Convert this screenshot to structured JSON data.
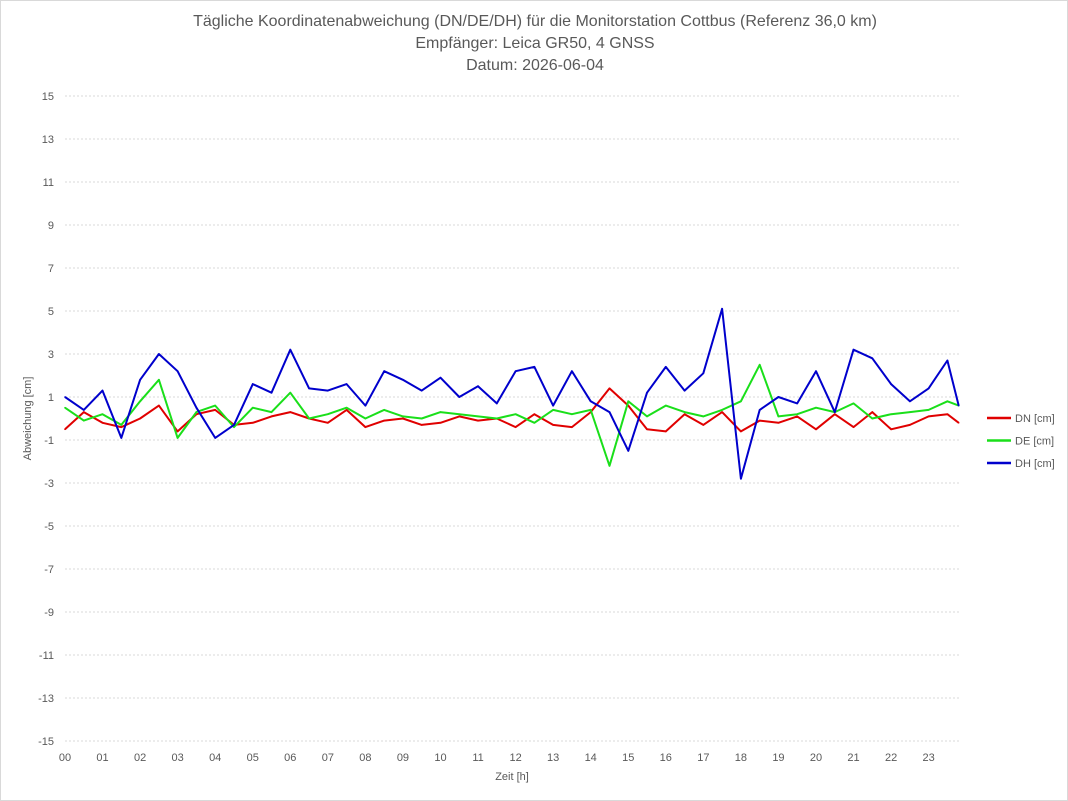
{
  "chart_data": {
    "type": "line",
    "title": "Tägliche Koordinatenabweichung (DN/DE/DH) für die Monitorstation Cottbus (Referenz 36,0 km)",
    "subtitle_1": "Empfänger: Leica GR50, 4 GNSS",
    "subtitle_2": "Datum: 2026-06-04",
    "xlabel": "Zeit [h]",
    "ylabel": "Abweichung [cm]",
    "xlim": [
      0,
      23.8
    ],
    "ylim": [
      -15,
      15
    ],
    "x_ticks": [
      "00",
      "01",
      "02",
      "03",
      "04",
      "05",
      "06",
      "07",
      "08",
      "09",
      "10",
      "11",
      "12",
      "13",
      "14",
      "15",
      "16",
      "17",
      "18",
      "19",
      "20",
      "21",
      "22",
      "23"
    ],
    "y_ticks": [
      15,
      13,
      11,
      9,
      7,
      5,
      3,
      1,
      -1,
      -3,
      -5,
      -7,
      -9,
      -11,
      -13,
      -15
    ],
    "grid": "horizontal dotted",
    "legend_position": "right",
    "series": [
      {
        "name": "DN [cm]",
        "color": "#e00000",
        "x": [
          0,
          0.5,
          1,
          1.5,
          2,
          2.5,
          3,
          3.5,
          4,
          4.5,
          5,
          5.5,
          6,
          6.5,
          7,
          7.5,
          8,
          8.5,
          9,
          9.5,
          10,
          10.5,
          11,
          11.5,
          12,
          12.5,
          13,
          13.5,
          14,
          14.5,
          15,
          15.5,
          16,
          16.5,
          17,
          17.5,
          18,
          18.5,
          19,
          19.5,
          20,
          20.5,
          21,
          21.5,
          22,
          22.5,
          23,
          23.5,
          23.8
        ],
        "values": [
          -0.5,
          0.3,
          -0.2,
          -0.4,
          0.0,
          0.6,
          -0.6,
          0.2,
          0.4,
          -0.3,
          -0.2,
          0.1,
          0.3,
          0.0,
          -0.2,
          0.4,
          -0.4,
          -0.1,
          0.0,
          -0.3,
          -0.2,
          0.1,
          -0.1,
          0.0,
          -0.4,
          0.2,
          -0.3,
          -0.4,
          0.3,
          1.4,
          0.6,
          -0.5,
          -0.6,
          0.2,
          -0.3,
          0.3,
          -0.6,
          -0.1,
          -0.2,
          0.1,
          -0.5,
          0.2,
          -0.4,
          0.3,
          -0.5,
          -0.3,
          0.1,
          0.2,
          -0.2
        ]
      },
      {
        "name": "DE [cm]",
        "color": "#1adf1a",
        "x": [
          0,
          0.5,
          1,
          1.5,
          2,
          2.5,
          3,
          3.5,
          4,
          4.5,
          5,
          5.5,
          6,
          6.5,
          7,
          7.5,
          8,
          8.5,
          9,
          9.5,
          10,
          10.5,
          11,
          11.5,
          12,
          12.5,
          13,
          13.5,
          14,
          14.5,
          15,
          15.5,
          16,
          16.5,
          17,
          17.5,
          18,
          18.5,
          19,
          19.5,
          20,
          20.5,
          21,
          21.5,
          22,
          22.5,
          23,
          23.5,
          23.8
        ],
        "values": [
          0.5,
          -0.1,
          0.2,
          -0.3,
          0.8,
          1.8,
          -0.9,
          0.3,
          0.6,
          -0.4,
          0.5,
          0.3,
          1.2,
          0.0,
          0.2,
          0.5,
          0.0,
          0.4,
          0.1,
          0.0,
          0.3,
          0.2,
          0.1,
          0.0,
          0.2,
          -0.2,
          0.4,
          0.2,
          0.4,
          -2.2,
          0.8,
          0.1,
          0.6,
          0.3,
          0.1,
          0.4,
          0.8,
          2.5,
          0.1,
          0.2,
          0.5,
          0.3,
          0.7,
          0.0,
          0.2,
          0.3,
          0.4,
          0.8,
          0.6
        ]
      },
      {
        "name": "DH [cm]",
        "color": "#0000cc",
        "x": [
          0,
          0.5,
          1,
          1.5,
          2,
          2.5,
          3,
          3.5,
          4,
          4.5,
          5,
          5.5,
          6,
          6.5,
          7,
          7.5,
          8,
          8.5,
          9,
          9.5,
          10,
          10.5,
          11,
          11.5,
          12,
          12.5,
          13,
          13.5,
          14,
          14.5,
          15,
          15.5,
          16,
          16.5,
          17,
          17.5,
          18,
          18.5,
          19,
          19.5,
          20,
          20.5,
          21,
          21.5,
          22,
          22.5,
          23,
          23.5,
          23.8
        ],
        "values": [
          1.0,
          0.4,
          1.3,
          -0.9,
          1.8,
          3.0,
          2.2,
          0.5,
          -0.9,
          -0.3,
          1.6,
          1.2,
          3.2,
          1.4,
          1.3,
          1.6,
          0.6,
          2.2,
          1.8,
          1.3,
          1.9,
          1.0,
          1.5,
          0.7,
          2.2,
          2.4,
          0.6,
          2.2,
          0.8,
          0.3,
          -1.5,
          1.2,
          2.4,
          1.3,
          2.1,
          5.1,
          -2.8,
          0.4,
          1.0,
          0.7,
          2.2,
          0.3,
          3.2,
          2.8,
          1.6,
          0.8,
          1.4,
          2.7,
          0.6
        ]
      }
    ]
  }
}
